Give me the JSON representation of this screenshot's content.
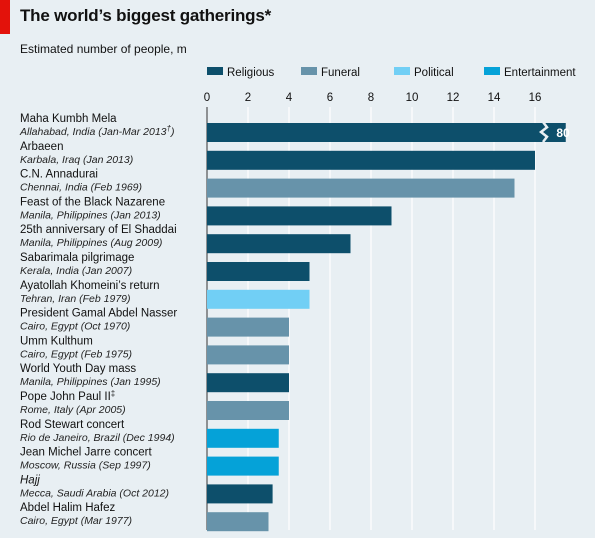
{
  "header": {
    "title": "The world’s biggest gatherings*",
    "subtitle": "Estimated number of people, m"
  },
  "colors": {
    "Religious": "#0d4f6b",
    "Funeral": "#6793aa",
    "Political": "#71cff5",
    "Entertainment": "#05a2d8",
    "accent": "#e3120b",
    "background": "#e8eff3"
  },
  "chart_data": {
    "type": "bar",
    "orientation": "horizontal",
    "title": "The world’s biggest gatherings*",
    "subtitle": "Estimated number of people, m",
    "xlim": [
      0,
      16
    ],
    "xticks": [
      0,
      2,
      4,
      6,
      8,
      10,
      12,
      14,
      16
    ],
    "axis_break_note": "first bar truncated, value labelled",
    "legend": [
      "Religious",
      "Funeral",
      "Political",
      "Entertainment"
    ],
    "legend_position": "top-right",
    "grid": true,
    "items": [
      {
        "name": "Maha Kumbh Mela",
        "sup": "",
        "sub": "Allahabad, India (Jan-Mar 2013",
        "sub_sup": "†",
        "sub_end": ")",
        "value": 80,
        "value_label": "80",
        "category": "Religious",
        "italic": false
      },
      {
        "name": "Arbaeen",
        "sup": "",
        "sub": "Karbala, Iraq (Jan 2013)",
        "sub_sup": "",
        "sub_end": "",
        "value": 16,
        "value_label": "",
        "category": "Religious",
        "italic": false
      },
      {
        "name": "C.N. Annadurai",
        "sup": "",
        "sub": "Chennai, India (Feb 1969)",
        "sub_sup": "",
        "sub_end": "",
        "value": 15,
        "value_label": "",
        "category": "Funeral",
        "italic": false
      },
      {
        "name": "Feast of the Black Nazarene",
        "sup": "",
        "sub": "Manila, Philippines (Jan 2013)",
        "sub_sup": "",
        "sub_end": "",
        "value": 9,
        "value_label": "",
        "category": "Religious",
        "italic": false
      },
      {
        "name": "25th anniversary of El Shaddai",
        "sup": "",
        "sub": "Manila, Philippines (Aug 2009)",
        "sub_sup": "",
        "sub_end": "",
        "value": 7,
        "value_label": "",
        "category": "Religious",
        "italic": false
      },
      {
        "name": "Sabarimala pilgrimage",
        "sup": "",
        "sub": "Kerala, India (Jan 2007)",
        "sub_sup": "",
        "sub_end": "",
        "value": 5,
        "value_label": "",
        "category": "Religious",
        "italic": false
      },
      {
        "name": "Ayatollah Khomeini’s return",
        "sup": "",
        "sub": "Tehran, Iran (Feb 1979)",
        "sub_sup": "",
        "sub_end": "",
        "value": 5,
        "value_label": "",
        "category": "Political",
        "italic": false
      },
      {
        "name": "President Gamal Abdel Nasser",
        "sup": "",
        "sub": "Cairo, Egypt (Oct 1970)",
        "sub_sup": "",
        "sub_end": "",
        "value": 4,
        "value_label": "",
        "category": "Funeral",
        "italic": false
      },
      {
        "name": "Umm Kulthum",
        "sup": "",
        "sub": "Cairo, Egypt (Feb 1975)",
        "sub_sup": "",
        "sub_end": "",
        "value": 4,
        "value_label": "",
        "category": "Funeral",
        "italic": false
      },
      {
        "name": "World Youth Day mass",
        "sup": "",
        "sub": "Manila, Philippines (Jan 1995)",
        "sub_sup": "",
        "sub_end": "",
        "value": 4,
        "value_label": "",
        "category": "Religious",
        "italic": false
      },
      {
        "name": "Pope John Paul II",
        "sup": "‡",
        "sub": "Rome, Italy (Apr 2005)",
        "sub_sup": "",
        "sub_end": "",
        "value": 4,
        "value_label": "",
        "category": "Funeral",
        "italic": false
      },
      {
        "name": "Rod Stewart concert",
        "sup": "",
        "sub": "Rio de Janeiro, Brazil (Dec 1994)",
        "sub_sup": "",
        "sub_end": "",
        "value": 3.5,
        "value_label": "",
        "category": "Entertainment",
        "italic": false
      },
      {
        "name": "Jean Michel Jarre concert",
        "sup": "",
        "sub": "Moscow, Russia (Sep 1997)",
        "sub_sup": "",
        "sub_end": "",
        "value": 3.5,
        "value_label": "",
        "category": "Entertainment",
        "italic": false
      },
      {
        "name": "Hajj",
        "sup": "",
        "sub": "Mecca, Saudi Arabia (Oct 2012)",
        "sub_sup": "",
        "sub_end": "",
        "value": 3.2,
        "value_label": "",
        "category": "Religious",
        "italic": true
      },
      {
        "name": "Abdel Halim Hafez",
        "sup": "",
        "sub": "Cairo, Egypt (Mar 1977)",
        "sub_sup": "",
        "sub_end": "",
        "value": 3,
        "value_label": "",
        "category": "Funeral",
        "italic": false
      }
    ]
  }
}
